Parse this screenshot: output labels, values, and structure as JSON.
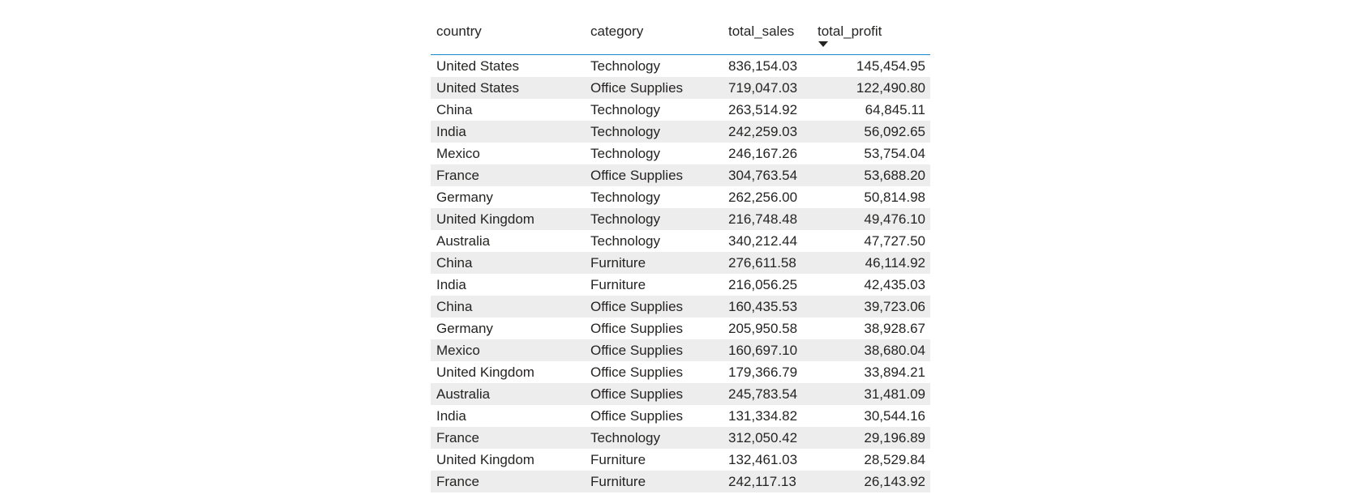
{
  "table": {
    "columns": [
      "country",
      "category",
      "total_sales",
      "total_profit"
    ],
    "sort_column": "total_profit",
    "sort_direction": "descending",
    "rows": [
      [
        "United States",
        "Technology",
        "836,154.03",
        "145,454.95"
      ],
      [
        "United States",
        "Office Supplies",
        "719,047.03",
        "122,490.80"
      ],
      [
        "China",
        "Technology",
        "263,514.92",
        "64,845.11"
      ],
      [
        "India",
        "Technology",
        "242,259.03",
        "56,092.65"
      ],
      [
        "Mexico",
        "Technology",
        "246,167.26",
        "53,754.04"
      ],
      [
        "France",
        "Office Supplies",
        "304,763.54",
        "53,688.20"
      ],
      [
        "Germany",
        "Technology",
        "262,256.00",
        "50,814.98"
      ],
      [
        "United Kingdom",
        "Technology",
        "216,748.48",
        "49,476.10"
      ],
      [
        "Australia",
        "Technology",
        "340,212.44",
        "47,727.50"
      ],
      [
        "China",
        "Furniture",
        "276,611.58",
        "46,114.92"
      ],
      [
        "India",
        "Furniture",
        "216,056.25",
        "42,435.03"
      ],
      [
        "China",
        "Office Supplies",
        "160,435.53",
        "39,723.06"
      ],
      [
        "Germany",
        "Office Supplies",
        "205,950.58",
        "38,928.67"
      ],
      [
        "Mexico",
        "Office Supplies",
        "160,697.10",
        "38,680.04"
      ],
      [
        "United Kingdom",
        "Office Supplies",
        "179,366.79",
        "33,894.21"
      ],
      [
        "Australia",
        "Office Supplies",
        "245,783.54",
        "31,481.09"
      ],
      [
        "India",
        "Office Supplies",
        "131,334.82",
        "30,544.16"
      ],
      [
        "France",
        "Technology",
        "312,050.42",
        "29,196.89"
      ],
      [
        "United Kingdom",
        "Furniture",
        "132,461.03",
        "28,529.84"
      ],
      [
        "France",
        "Furniture",
        "242,117.13",
        "26,143.92"
      ]
    ]
  },
  "colors": {
    "header_rule": "#1b88cc",
    "row_stripe": "#ededed",
    "text": "#252423"
  }
}
